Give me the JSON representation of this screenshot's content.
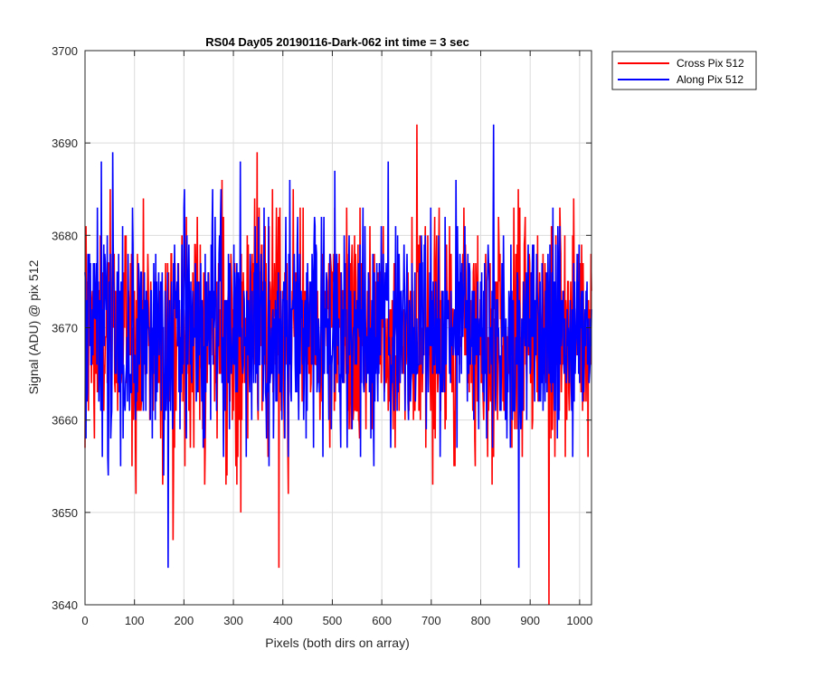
{
  "chart_data": {
    "type": "line",
    "title": "RS04 Day05 20190116-Dark-062 int time = 3 sec",
    "xlabel": "Pixels (both dirs on array)",
    "ylabel": "Signal (ADU) @ pix 512",
    "xlim": [
      0,
      1024
    ],
    "ylim": [
      3640,
      3700
    ],
    "xticks": [
      0,
      100,
      200,
      300,
      400,
      500,
      600,
      700,
      800,
      900,
      1000
    ],
    "yticks": [
      3640,
      3650,
      3660,
      3670,
      3680,
      3690,
      3700
    ],
    "grid": true,
    "legend_position": "outside-top-right",
    "noise_model": {
      "mean": 3669.5,
      "std": 6.2
    },
    "series": [
      {
        "name": "Cross Pix 512",
        "color": "#ff0000",
        "highlights": [
          {
            "x": 671,
            "y": 3692
          },
          {
            "x": 348,
            "y": 3689
          },
          {
            "x": 938,
            "y": 3640
          },
          {
            "x": 392,
            "y": 3644
          },
          {
            "x": 178,
            "y": 3647
          },
          {
            "x": 0,
            "y": 3657
          }
        ]
      },
      {
        "name": "Along Pix 512",
        "color": "#0000ff",
        "highlights": [
          {
            "x": 826,
            "y": 3692
          },
          {
            "x": 33,
            "y": 3688
          },
          {
            "x": 168,
            "y": 3644
          },
          {
            "x": 877,
            "y": 3644
          },
          {
            "x": 1024,
            "y": 3672
          }
        ]
      }
    ]
  }
}
